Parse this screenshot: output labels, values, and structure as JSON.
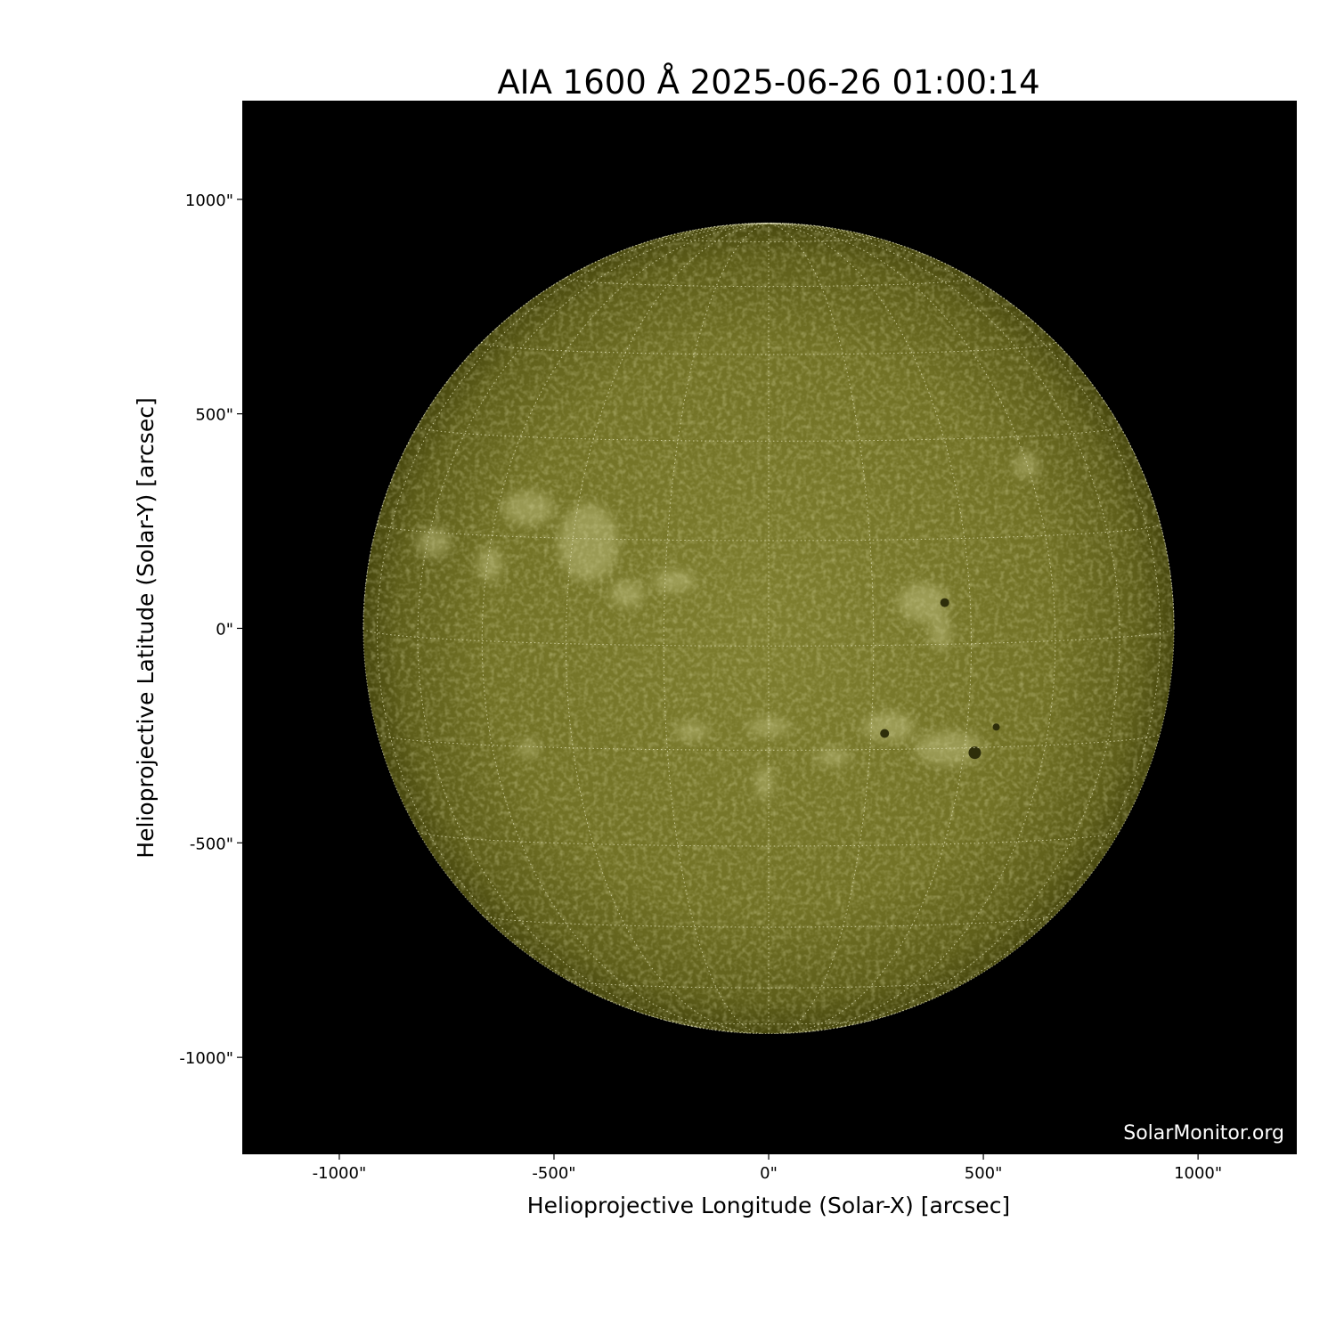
{
  "chart_data": {
    "type": "image",
    "title": "AIA 1600 Å 2025-06-26 01:00:14",
    "xlabel": "Helioprojective Longitude (Solar-X) [arcsec]",
    "ylabel": "Helioprojective Latitude (Solar-Y) [arcsec]",
    "xlim": [
      -1226,
      1230
    ],
    "ylim": [
      -1226,
      1230
    ],
    "xticks": [
      {
        "value": -1000,
        "label": "-1000\""
      },
      {
        "value": -500,
        "label": "-500\""
      },
      {
        "value": 0,
        "label": "0\""
      },
      {
        "value": 500,
        "label": "500\""
      },
      {
        "value": 1000,
        "label": "1000\""
      }
    ],
    "yticks": [
      {
        "value": 1000,
        "label": "1000\""
      },
      {
        "value": 500,
        "label": "500\""
      },
      {
        "value": 0,
        "label": "0\""
      },
      {
        "value": -500,
        "label": "-500\""
      },
      {
        "value": -1000,
        "label": "-1000\""
      }
    ],
    "solar_radius_arcsec": 944,
    "grid": {
      "heliographic": true,
      "spacing_deg": 15
    },
    "colormap": "sdoaia1600",
    "colors": {
      "disk_center": "#7d7d2e",
      "disk_limb": "#4a4a0f",
      "background": "#000000",
      "grid": "#e8e8c0"
    },
    "watermark": "SolarMonitor.org"
  }
}
